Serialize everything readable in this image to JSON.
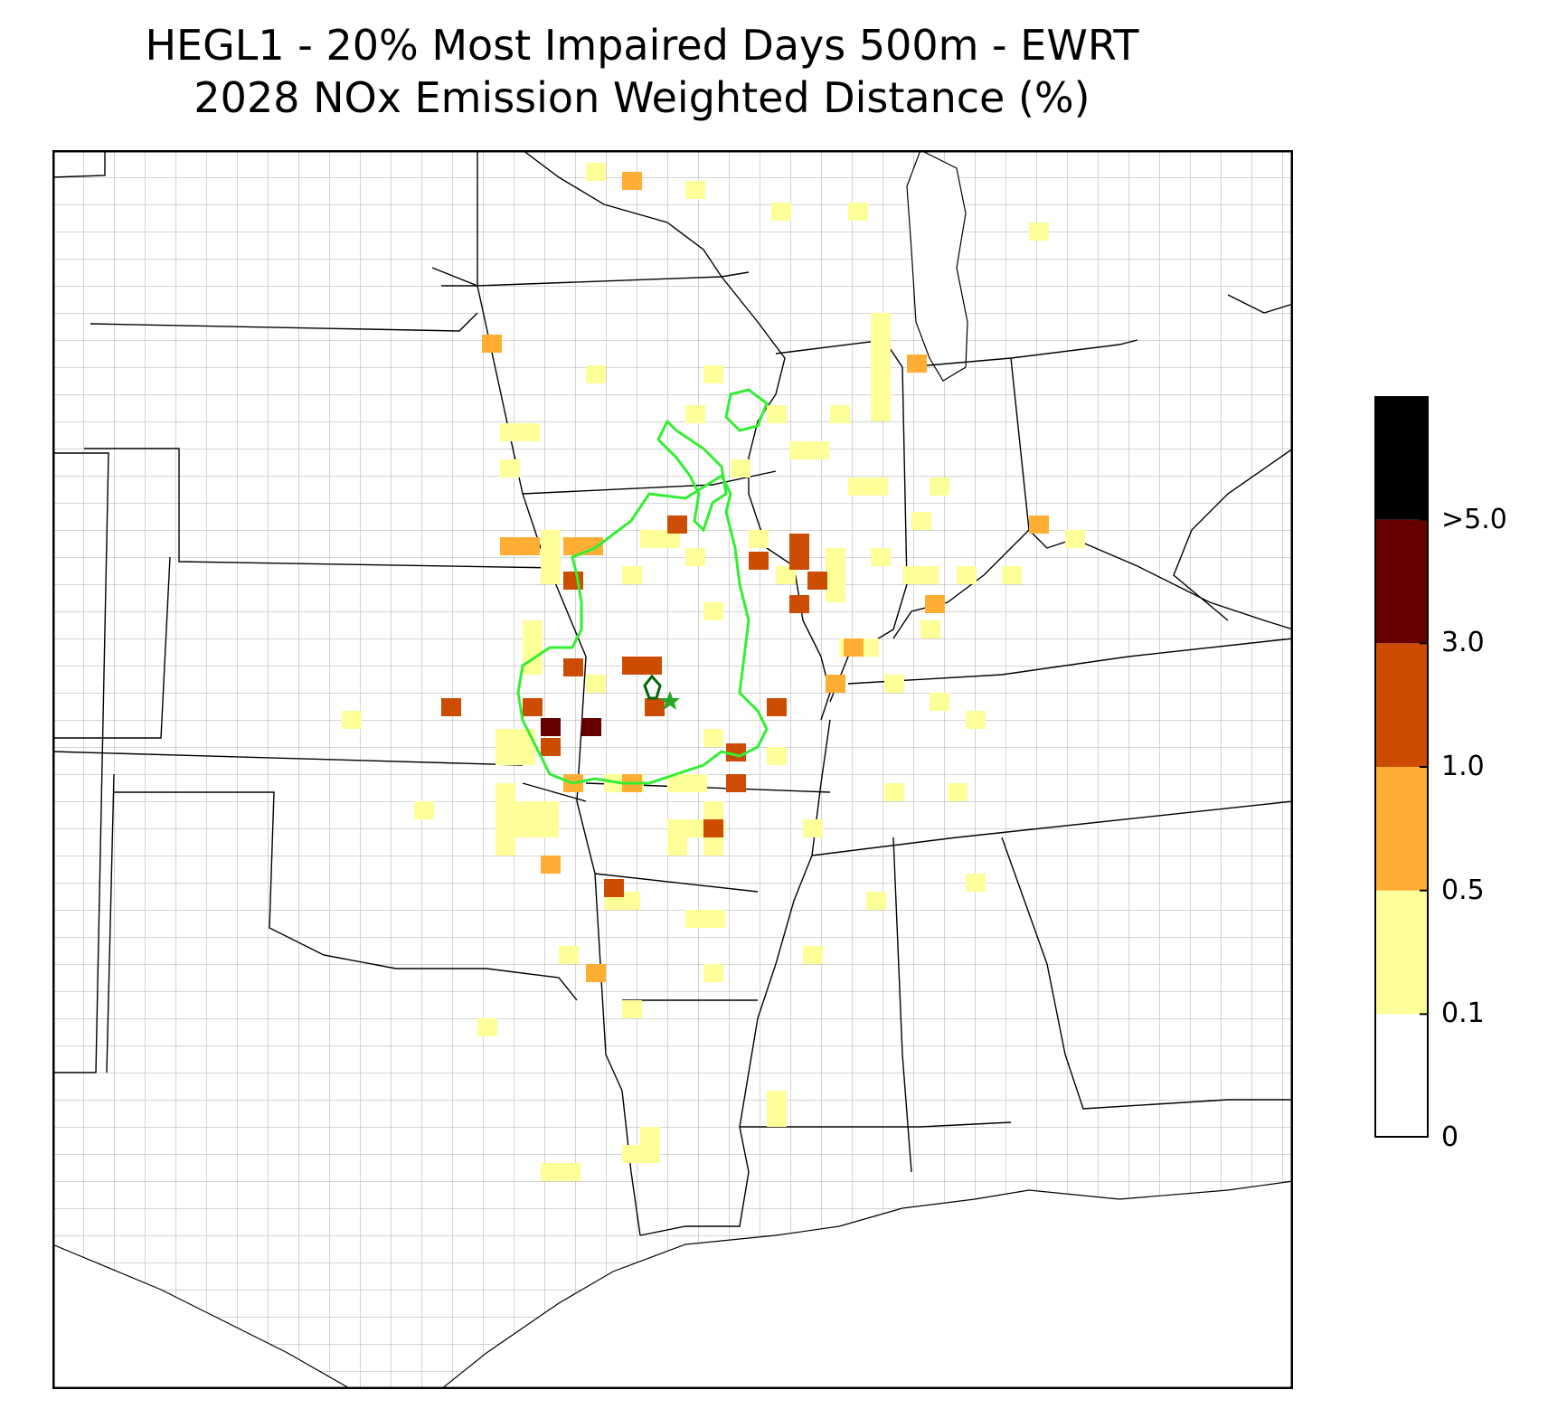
{
  "title": {
    "line1": "HEGL1 - 20% Most Impaired Days 500m - EWRT",
    "line2": "2028 NOx Emission Weighted Distance (%)"
  },
  "colorbar": {
    "bins": [
      {
        "label": "0",
        "color": "#ffffff"
      },
      {
        "label": "0.1",
        "color": "#ffff99"
      },
      {
        "label": "0.5",
        "color": "#fdae33"
      },
      {
        "label": "1.0",
        "color": "#cc4c02"
      },
      {
        "label": "3.0",
        "color": "#660000"
      },
      {
        "label": ">5.0",
        "color": "#000000"
      }
    ]
  },
  "map": {
    "state_line_color": "#000000",
    "county_line_color": "#9a9a9a",
    "contour_color": "#33ee33",
    "site_marker_color": "#22aa22"
  }
}
